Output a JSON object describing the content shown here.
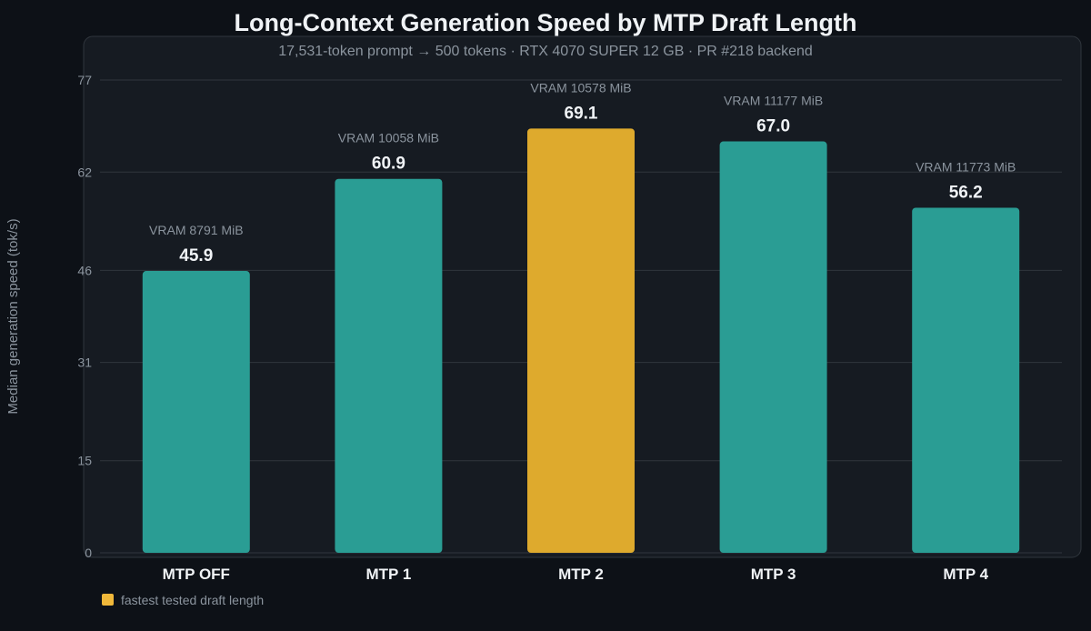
{
  "chart_data": {
    "type": "bar",
    "title": "Long-Context Generation Speed by MTP Draft Length",
    "subtitle": "17,531-token prompt → 500 tokens · RTX 4070 SUPER 12 GB · PR #218 backend",
    "xlabel": "",
    "ylabel": "Median generation speed (tok/s)",
    "ylim": [
      0,
      77
    ],
    "yticks": [
      0,
      15,
      31,
      46,
      62,
      77
    ],
    "grid": true,
    "categories": [
      "MTP OFF",
      "MTP 1",
      "MTP 2",
      "MTP 3",
      "MTP 4"
    ],
    "values": [
      45.9,
      60.9,
      69.1,
      67.0,
      56.2
    ],
    "value_labels": [
      "45.9",
      "60.9",
      "69.1",
      "67.0",
      "56.2"
    ],
    "vram_labels": [
      "VRAM 8791 MiB",
      "VRAM 10058 MiB",
      "VRAM 10578 MiB",
      "VRAM 11177 MiB",
      "VRAM 11773 MiB"
    ],
    "highlight_index": 2,
    "colors": {
      "bar": "#2a9d94",
      "highlight": "#deaa2d",
      "background": "#0d1117",
      "panel": "#161b22",
      "grid": "#30363d"
    },
    "legend": {
      "placement": "bottom-left",
      "items": [
        {
          "label": "fastest tested draft length",
          "color": "#f0b83a"
        }
      ]
    }
  }
}
